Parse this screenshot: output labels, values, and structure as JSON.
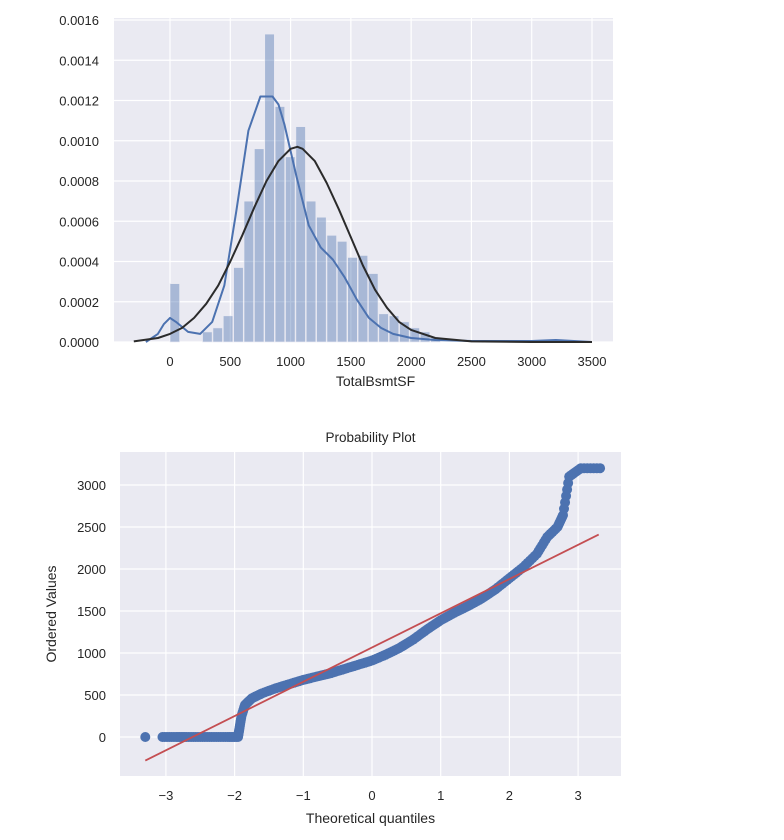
{
  "chart_data": [
    {
      "type": "bar",
      "subtype": "histogram_with_kde_and_normal_fit",
      "title": "",
      "xlabel": "TotalBsmtSF",
      "ylabel": "",
      "xlim": [
        -340,
        3520
      ],
      "ylim": [
        0,
        0.0016
      ],
      "grid": true,
      "background": "#EAEAF2",
      "xticks": [
        0,
        500,
        1000,
        1500,
        2000,
        2500,
        3000,
        3500
      ],
      "xtick_labels": [
        "0",
        "500",
        "1000",
        "1500",
        "2000",
        "2500",
        "3000",
        "3500"
      ],
      "yticks": [
        0.0,
        0.0002,
        0.0004,
        0.0006,
        0.0008,
        0.001,
        0.0012,
        0.0014,
        0.0016
      ],
      "ytick_labels": [
        "0.0000",
        "0.0002",
        "0.0004",
        "0.0006",
        "0.0008",
        "0.0010",
        "0.0012",
        "0.0014",
        "0.0016"
      ],
      "bin_width": 86,
      "bins": [
        {
          "x": 0,
          "value": 0.00029
        },
        {
          "x": 270,
          "value": 5e-05
        },
        {
          "x": 356,
          "value": 7e-05
        },
        {
          "x": 442,
          "value": 0.00013
        },
        {
          "x": 528,
          "value": 0.00037
        },
        {
          "x": 614,
          "value": 0.0007
        },
        {
          "x": 700,
          "value": 0.00096
        },
        {
          "x": 786,
          "value": 0.00153
        },
        {
          "x": 872,
          "value": 0.00117
        },
        {
          "x": 958,
          "value": 0.00092
        },
        {
          "x": 1044,
          "value": 0.00107
        },
        {
          "x": 1130,
          "value": 0.0007
        },
        {
          "x": 1216,
          "value": 0.00062
        },
        {
          "x": 1302,
          "value": 0.00053
        },
        {
          "x": 1388,
          "value": 0.0005
        },
        {
          "x": 1474,
          "value": 0.00042
        },
        {
          "x": 1560,
          "value": 0.00043
        },
        {
          "x": 1646,
          "value": 0.00034
        },
        {
          "x": 1732,
          "value": 0.00014
        },
        {
          "x": 1818,
          "value": 0.00013
        },
        {
          "x": 1904,
          "value": 0.0001
        },
        {
          "x": 1990,
          "value": 7e-05
        },
        {
          "x": 2076,
          "value": 5e-05
        },
        {
          "x": 2162,
          "value": 2e-05
        },
        {
          "x": 3138,
          "value": 1e-05
        }
      ],
      "series": [
        {
          "name": "kde",
          "color": "#4C72B0",
          "x": [
            -200,
            -100,
            -50,
            0,
            50,
            150,
            250,
            350,
            450,
            550,
            650,
            750,
            850,
            900,
            950,
            1050,
            1150,
            1250,
            1350,
            1450,
            1550,
            1650,
            1750,
            1850,
            2000,
            2200,
            2500,
            3000,
            3200,
            3500
          ],
          "values": [
            0.0,
            4e-05,
            9e-05,
            0.00012,
            0.0001,
            5e-05,
            4e-05,
            0.0001,
            0.00028,
            0.00065,
            0.00105,
            0.00122,
            0.00122,
            0.00118,
            0.00108,
            0.00082,
            0.00058,
            0.00047,
            0.00041,
            0.00032,
            0.00021,
            0.00012,
            7e-05,
            4e-05,
            2e-05,
            1e-05,
            5e-06,
            5e-06,
            1e-05,
            0.0
          ]
        },
        {
          "name": "normal_fit",
          "color": "#2B2B2B",
          "x": [
            -300,
            -100,
            0,
            100,
            200,
            300,
            400,
            500,
            600,
            700,
            800,
            900,
            1000,
            1057,
            1100,
            1200,
            1300,
            1400,
            1500,
            1600,
            1700,
            1800,
            1900,
            2000,
            2200,
            2500,
            3000,
            3500
          ],
          "values": [
            3e-06,
            2e-05,
            4e-05,
            7e-05,
            0.00012,
            0.00019,
            0.00028,
            0.0004,
            0.00053,
            0.00067,
            0.0008,
            0.0009,
            0.00096,
            0.00097,
            0.00096,
            0.0009,
            0.00079,
            0.00066,
            0.00052,
            0.00038,
            0.00026,
            0.00017,
            0.0001,
            6e-05,
            2e-05,
            3e-06,
            0.0,
            0.0
          ]
        }
      ]
    },
    {
      "type": "scatter",
      "title": "Probability Plot",
      "xlabel": "Theoretical quantiles",
      "ylabel": "Ordered Values",
      "xlim": [
        -3.55,
        3.6
      ],
      "ylim": [
        -460,
        3380
      ],
      "grid": true,
      "background": "#EAEAF2",
      "xticks": [
        -3,
        -2,
        -1,
        0,
        1,
        2,
        3
      ],
      "xtick_labels": [
        "−3",
        "−2",
        "−1",
        "0",
        "1",
        "2",
        "3"
      ],
      "yticks": [
        0,
        500,
        1000,
        1500,
        2000,
        2500,
        3000
      ],
      "ytick_labels": [
        "0",
        "500",
        "1000",
        "1500",
        "2000",
        "2500",
        "3000"
      ],
      "series": [
        {
          "name": "ordered_values",
          "color": "#4C72B0",
          "points": [
            [
              -3.3,
              0
            ],
            [
              -3.05,
              0
            ],
            [
              -2.85,
              0
            ],
            [
              -2.7,
              0
            ],
            [
              -2.5,
              0
            ],
            [
              -2.3,
              0
            ],
            [
              -2.1,
              0
            ],
            [
              -1.95,
              0
            ],
            [
              -1.93,
              100
            ],
            [
              -1.9,
              250
            ],
            [
              -1.85,
              380
            ],
            [
              -1.75,
              460
            ],
            [
              -1.6,
              520
            ],
            [
              -1.4,
              580
            ],
            [
              -1.2,
              630
            ],
            [
              -1.0,
              680
            ],
            [
              -0.8,
              720
            ],
            [
              -0.6,
              760
            ],
            [
              -0.4,
              810
            ],
            [
              -0.2,
              860
            ],
            [
              0.0,
              910
            ],
            [
              0.2,
              980
            ],
            [
              0.4,
              1060
            ],
            [
              0.6,
              1160
            ],
            [
              0.8,
              1280
            ],
            [
              1.0,
              1390
            ],
            [
              1.2,
              1480
            ],
            [
              1.4,
              1560
            ],
            [
              1.6,
              1650
            ],
            [
              1.8,
              1760
            ],
            [
              2.0,
              1890
            ],
            [
              2.2,
              2020
            ],
            [
              2.4,
              2180
            ],
            [
              2.55,
              2380
            ],
            [
              2.7,
              2500
            ],
            [
              2.78,
              2640
            ],
            [
              2.87,
              3100
            ],
            [
              3.04,
              3200
            ],
            [
              3.32,
              3200
            ]
          ]
        },
        {
          "name": "fit_line",
          "color": "#C44E52",
          "type": "line",
          "x": [
            -3.3,
            3.3
          ],
          "values": [
            -280,
            2410
          ]
        }
      ]
    }
  ]
}
